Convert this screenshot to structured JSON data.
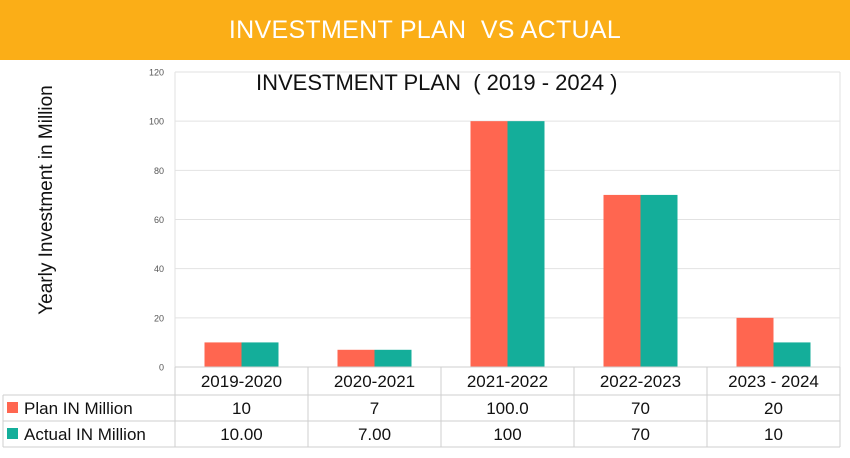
{
  "header": {
    "title": "INVESTMENT PLAN  VS ACTUAL"
  },
  "colors": {
    "header_bg": "#FBAE17",
    "plan": "#FF6650",
    "actual": "#14AE9A"
  },
  "chart_data": {
    "type": "bar",
    "title": "INVESTMENT PLAN  ( 2019 - 2024 )",
    "xlabel": "",
    "ylabel": "Yearly Investment in Million",
    "ylim": [
      0,
      120
    ],
    "yticks": [
      "0",
      "20",
      "40",
      "60",
      "80",
      "100",
      "120"
    ],
    "grid": true,
    "categories": [
      "2019-2020",
      "2020-2021",
      "2021-2022",
      "2022-2023",
      "2023 - 2024"
    ],
    "series": [
      {
        "name": "Plan IN Million",
        "values": [
          10,
          7,
          100,
          70,
          20
        ],
        "labels": [
          "10",
          "7",
          "100.0",
          "70",
          "20"
        ]
      },
      {
        "name": "Actual IN Million",
        "values": [
          10,
          7,
          100,
          70,
          10
        ],
        "labels": [
          "10.00",
          "7.00",
          "100",
          "70",
          "10"
        ]
      }
    ]
  }
}
